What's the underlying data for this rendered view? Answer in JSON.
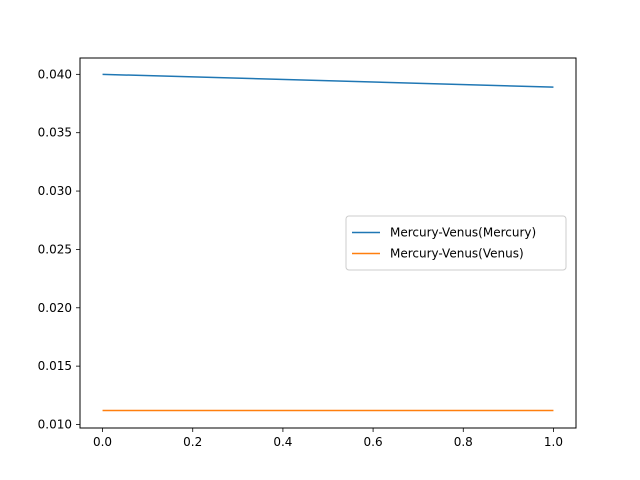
{
  "chart_data": {
    "type": "line",
    "title": "",
    "xlabel": "",
    "ylabel": "",
    "xlim": [
      -0.05,
      1.05
    ],
    "ylim": [
      0.0097,
      0.0414
    ],
    "xticks": [
      0.0,
      0.2,
      0.4,
      0.6,
      0.8,
      1.0
    ],
    "xtick_labels": [
      "0.0",
      "0.2",
      "0.4",
      "0.6",
      "0.8",
      "1.0"
    ],
    "yticks": [
      0.01,
      0.015,
      0.02,
      0.025,
      0.03,
      0.035,
      0.04
    ],
    "ytick_labels": [
      "0.010",
      "0.015",
      "0.020",
      "0.025",
      "0.030",
      "0.035",
      "0.040"
    ],
    "grid": false,
    "legend_position": "center-right",
    "series": [
      {
        "name": "Mercury-Venus(Mercury)",
        "color": "#1f77b4",
        "x": [
          0.0,
          1.0
        ],
        "y": [
          0.04,
          0.0389
        ]
      },
      {
        "name": "Mercury-Venus(Venus)",
        "color": "#ff7f0e",
        "x": [
          0.0,
          1.0
        ],
        "y": [
          0.0112,
          0.0112
        ]
      }
    ]
  }
}
